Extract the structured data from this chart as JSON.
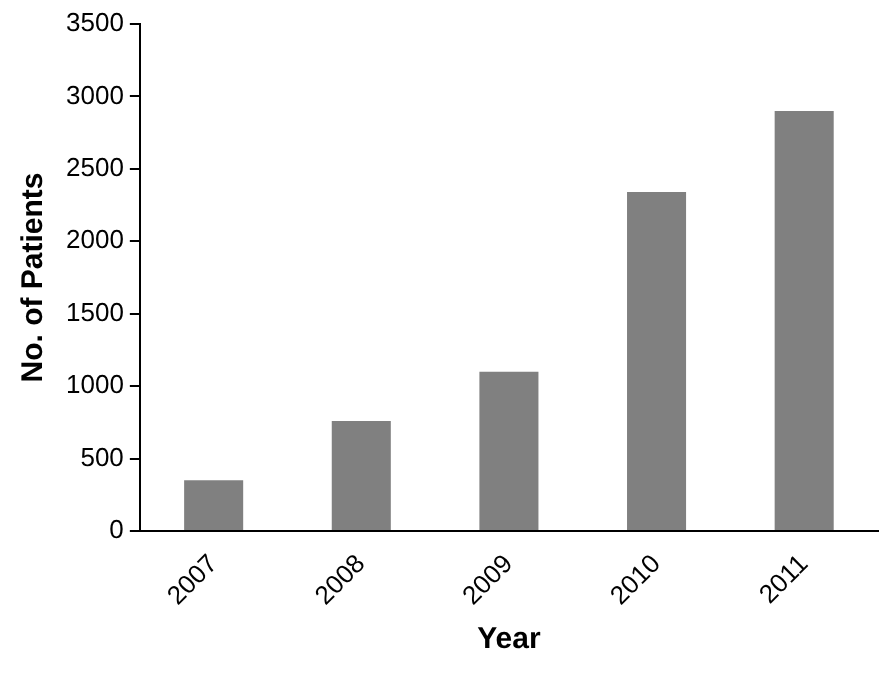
{
  "chart_data": {
    "type": "bar",
    "xlabel": "Year",
    "ylabel": "No. of Patients",
    "categories": [
      "2007",
      "2008",
      "2009",
      "2010",
      "2011"
    ],
    "values": [
      350,
      760,
      1100,
      2340,
      2900
    ],
    "color": "#808080",
    "ylim": [
      0,
      3500
    ],
    "yticks": [
      0,
      500,
      1000,
      1500,
      2000,
      2500,
      3000,
      3500
    ],
    "grid": false,
    "legend": false
  }
}
